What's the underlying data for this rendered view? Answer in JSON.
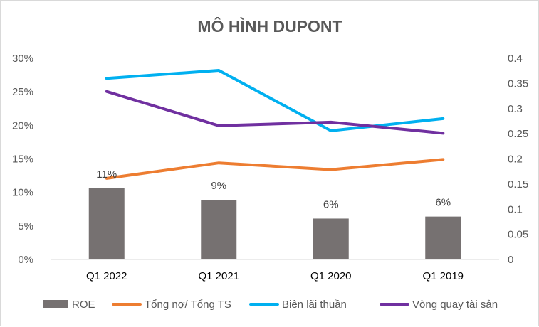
{
  "chart_data": {
    "type": "bar+line",
    "title": "MÔ HÌNH DUPONT",
    "categories": [
      "Q1 2022",
      "Q1 2021",
      "Q1 2020",
      "Q1 2019"
    ],
    "y_left": {
      "range": [
        0,
        0.3
      ],
      "ticks": [
        0,
        0.05,
        0.1,
        0.15,
        0.2,
        0.25,
        0.3
      ],
      "tick_labels": [
        "0%",
        "5%",
        "10%",
        "15%",
        "20%",
        "25%",
        "30%"
      ]
    },
    "y_right": {
      "range": [
        0,
        0.4
      ],
      "ticks": [
        0,
        0.05,
        0.1,
        0.15,
        0.2,
        0.25,
        0.3,
        0.35,
        0.4
      ],
      "tick_labels": [
        "0",
        "0.05",
        "0.1",
        "0.15",
        "0.2",
        "0.25",
        "0.3",
        "0.35",
        "0.4"
      ]
    },
    "gridlines": false,
    "legend_position": "bottom",
    "series": [
      {
        "name": "ROE",
        "kind": "bar",
        "axis": "left",
        "color": "#767171",
        "values": [
          0.106,
          0.089,
          0.061,
          0.064
        ],
        "data_labels": [
          "11%",
          "9%",
          "6%",
          "6%"
        ]
      },
      {
        "name": "Tổng nợ/ Tổng TS",
        "kind": "line",
        "axis": "left",
        "color": "#ed7d31",
        "values": [
          0.121,
          0.144,
          0.134,
          0.149
        ]
      },
      {
        "name": "Biên lãi thuần",
        "kind": "line",
        "axis": "left",
        "color": "#00b0f0",
        "values": [
          0.27,
          0.282,
          0.192,
          0.21
        ]
      },
      {
        "name": "Vòng quay tài sản",
        "kind": "line",
        "axis": "right",
        "color": "#7030a0",
        "values": [
          0.334,
          0.266,
          0.273,
          0.251
        ]
      }
    ]
  }
}
